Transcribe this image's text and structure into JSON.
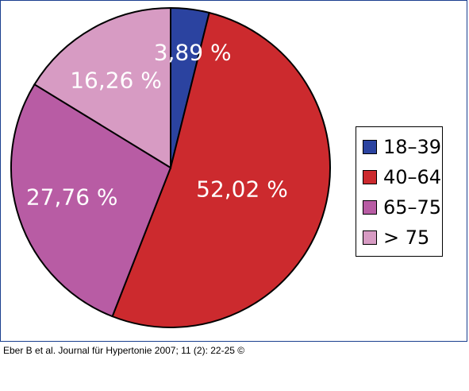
{
  "chart_data": {
    "type": "pie",
    "title": "",
    "slices": [
      {
        "label": "18–39",
        "value": 3.89,
        "value_label": "3,89 %",
        "color": "#2b43a0"
      },
      {
        "label": "40–64",
        "value": 52.02,
        "value_label": "52,02 %",
        "color": "#cc2a2e"
      },
      {
        "label": "65–75",
        "value": 27.76,
        "value_label": "27,76 %",
        "color": "#b85ca4"
      },
      {
        "label": "> 75",
        "value": 16.26,
        "value_label": "16,26 %",
        "color": "#d79bc3"
      }
    ],
    "legend_placement": "right",
    "start": "top, clockwise"
  },
  "citation": "Eber B et al. Journal für Hypertonie 2007; 11 (2): 22-25 ©"
}
